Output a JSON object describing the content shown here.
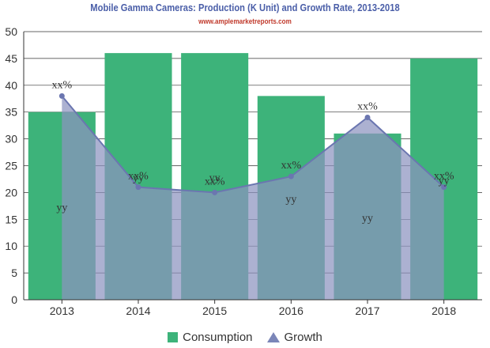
{
  "header": {
    "title": "Mobile Gamma Cameras: Production (K Unit) and Growth Rate, 2013-2018",
    "subtitle": "www.amplemarketreports.com"
  },
  "colors": {
    "consumption": "#3db37a",
    "growth_fill": "#8c93bf",
    "growth_line": "#6b76b0"
  },
  "chart_data": {
    "type": "bar",
    "categories": [
      "2013",
      "2014",
      "2015",
      "2016",
      "2017",
      "2018"
    ],
    "series": [
      {
        "name": "Consumption",
        "type": "bar",
        "values": [
          35,
          46,
          46,
          38,
          31,
          45
        ]
      },
      {
        "name": "Growth",
        "type": "area",
        "values": [
          38,
          21,
          20,
          23,
          34,
          21
        ]
      }
    ],
    "data_labels": {
      "bar_label": "yy",
      "growth_label": "xx%"
    },
    "ylim": [
      0,
      50
    ],
    "yticks": [
      0,
      5,
      10,
      15,
      20,
      25,
      30,
      35,
      40,
      45,
      50
    ],
    "grid": true,
    "legend": "bottom"
  },
  "legend": {
    "items": [
      {
        "label": "Consumption",
        "icon": "square-icon"
      },
      {
        "label": "Growth",
        "icon": "triangle-icon"
      }
    ]
  }
}
